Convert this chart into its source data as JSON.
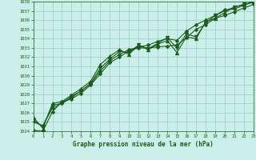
{
  "title": "Graphe pression niveau de la mer (hPa)",
  "bg_color": "#cceee8",
  "grid_color": "#99cccc",
  "text_color": "#1a5c1a",
  "line_color": "#1a5c1a",
  "xlim": [
    0,
    23
  ],
  "ylim": [
    1024,
    1038
  ],
  "xticks": [
    0,
    1,
    2,
    3,
    4,
    5,
    6,
    7,
    8,
    9,
    10,
    11,
    12,
    13,
    14,
    15,
    16,
    17,
    18,
    19,
    20,
    21,
    22,
    23
  ],
  "yticks": [
    1024,
    1025,
    1026,
    1027,
    1028,
    1029,
    1030,
    1031,
    1032,
    1033,
    1034,
    1035,
    1036,
    1037,
    1038
  ],
  "series": [
    [
      1024.1,
      1024.0,
      1026.1,
      1027.2,
      1027.5,
      1028.1,
      1029.0,
      1030.2,
      1031.4,
      1032.0,
      1032.7,
      1033.0,
      1033.0,
      1033.1,
      1033.2,
      1033.3,
      1034.1,
      1035.0,
      1035.5,
      1036.2,
      1036.5,
      1036.9,
      1037.3,
      1037.7
    ],
    [
      1025.5,
      1024.3,
      1027.0,
      1027.2,
      1027.9,
      1028.6,
      1029.4,
      1031.2,
      1032.1,
      1032.8,
      1032.3,
      1033.3,
      1032.8,
      1033.4,
      1033.8,
      1032.5,
      1034.2,
      1034.0,
      1035.8,
      1036.2,
      1036.8,
      1037.4,
      1037.7,
      1038.0
    ],
    [
      1025.2,
      1024.5,
      1026.8,
      1027.0,
      1027.8,
      1028.3,
      1029.2,
      1030.8,
      1031.8,
      1032.6,
      1032.5,
      1033.3,
      1032.9,
      1033.5,
      1034.1,
      1033.0,
      1034.5,
      1034.2,
      1035.7,
      1036.5,
      1037.0,
      1037.4,
      1037.7,
      1037.9
    ],
    [
      1025.0,
      1024.6,
      1026.5,
      1027.0,
      1027.6,
      1028.4,
      1029.1,
      1030.5,
      1031.6,
      1032.3,
      1032.8,
      1033.1,
      1033.3,
      1033.7,
      1034.0,
      1033.8,
      1034.8,
      1035.5,
      1036.0,
      1036.5,
      1037.1,
      1037.2,
      1037.6,
      1038.0
    ]
  ],
  "markers": [
    "D",
    "^",
    "v",
    "D"
  ],
  "marker_sizes": [
    2.5,
    3.5,
    3.5,
    2.5
  ],
  "linewidths": [
    0.8,
    0.8,
    0.8,
    0.8
  ]
}
